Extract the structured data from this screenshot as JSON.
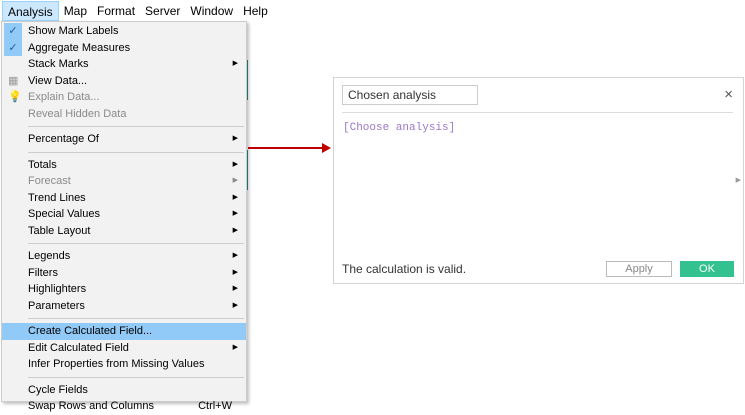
{
  "menubar": [
    "Analysis",
    "Map",
    "Format",
    "Server",
    "Window",
    "Help"
  ],
  "menu": [
    {
      "label": "Show Mark Labels",
      "checked": true
    },
    {
      "label": "Aggregate Measures",
      "checked": true
    },
    {
      "label": "Stack Marks",
      "submenu": true
    },
    {
      "label": "View Data...",
      "icon": "grid-icon"
    },
    {
      "label": "Explain Data...",
      "icon": "lightbulb-icon",
      "disabled": true
    },
    {
      "label": "Reveal Hidden Data",
      "disabled": true
    },
    {
      "sep": true
    },
    {
      "label": "Percentage Of",
      "submenu": true
    },
    {
      "sep": true
    },
    {
      "label": "Totals",
      "submenu": true
    },
    {
      "label": "Forecast",
      "submenu": true,
      "disabled": true
    },
    {
      "label": "Trend Lines",
      "submenu": true
    },
    {
      "label": "Special Values",
      "submenu": true
    },
    {
      "label": "Table Layout",
      "submenu": true
    },
    {
      "sep": true
    },
    {
      "label": "Legends",
      "submenu": true
    },
    {
      "label": "Filters",
      "submenu": true
    },
    {
      "label": "Highlighters",
      "submenu": true
    },
    {
      "label": "Parameters",
      "submenu": true
    },
    {
      "sep": true
    },
    {
      "label": "Create Calculated Field...",
      "highlighted": true
    },
    {
      "label": "Edit Calculated Field",
      "submenu": true
    },
    {
      "label": "Infer Properties from Missing Values"
    },
    {
      "sep": true
    },
    {
      "label": "Cycle Fields"
    },
    {
      "label": "Swap Rows and Columns",
      "shortcut": "Ctrl+W"
    }
  ],
  "dialog": {
    "name": "Chosen analysis",
    "formula": "[Choose analysis]",
    "status": "The calculation is valid.",
    "apply": "Apply",
    "ok": "OK",
    "close": "×"
  },
  "colors": {
    "ok": "#33c28f",
    "highlight": "#91c9f7",
    "arrow": "#c00000",
    "formula": "#9a78c8"
  }
}
